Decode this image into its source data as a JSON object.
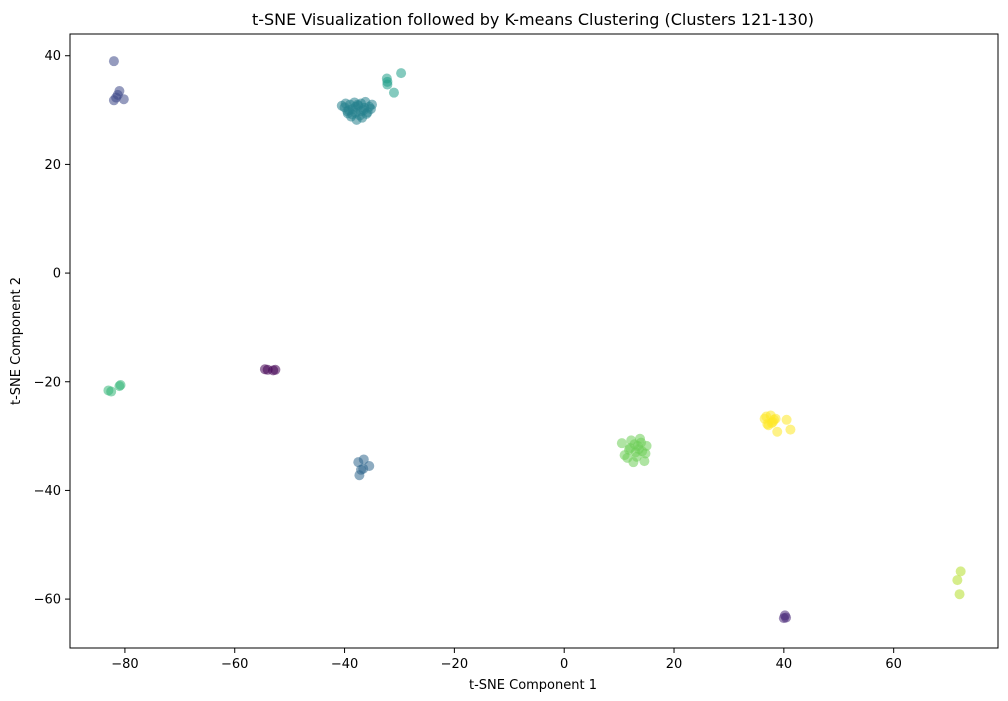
{
  "chart_data": {
    "type": "scatter",
    "title": "t-SNE Visualization followed by K-means Clustering (Clusters 121-130)",
    "xlabel": "t-SNE Component 1",
    "ylabel": "t-SNE Component 2",
    "xlim": [
      -90,
      79
    ],
    "ylim": [
      -69,
      44
    ],
    "xticks": [
      -80,
      -60,
      -40,
      -20,
      0,
      20,
      40,
      60
    ],
    "yticks": [
      -60,
      -40,
      -20,
      0,
      20,
      40
    ],
    "grid": false,
    "legend": "none",
    "series": [
      {
        "color": "#440154",
        "points": [
          [
            -54.5,
            -17.7
          ],
          [
            -54.0,
            -17.8
          ],
          [
            -53.0,
            -17.9
          ],
          [
            -52.6,
            -17.8
          ]
        ]
      },
      {
        "color": "#482878",
        "points": [
          [
            40.2,
            -63.0
          ],
          [
            40.0,
            -63.5
          ],
          [
            40.4,
            -63.4
          ]
        ]
      },
      {
        "color": "#3e4989",
        "points": [
          [
            -82.0,
            39.0
          ],
          [
            -81.0,
            33.5
          ],
          [
            -81.3,
            32.8
          ],
          [
            -82.0,
            31.8
          ],
          [
            -80.2,
            32.0
          ],
          [
            -81.6,
            32.3
          ]
        ]
      },
      {
        "color": "#31688e",
        "points": [
          [
            -37.5,
            -34.8
          ],
          [
            -36.5,
            -34.3
          ],
          [
            -35.5,
            -35.5
          ],
          [
            -37.0,
            -36.2
          ],
          [
            -37.3,
            -37.2
          ],
          [
            -36.6,
            -36.0
          ]
        ]
      },
      {
        "color": "#26828e",
        "points": [
          [
            -40.0,
            30.5
          ],
          [
            -39.5,
            29.8
          ],
          [
            -39.0,
            31.0
          ],
          [
            -38.5,
            30.2
          ],
          [
            -38.0,
            29.5
          ],
          [
            -37.5,
            30.8
          ],
          [
            -37.0,
            31.2
          ],
          [
            -36.5,
            30.0
          ],
          [
            -36.0,
            29.3
          ],
          [
            -35.5,
            30.6
          ],
          [
            -35.0,
            31.0
          ],
          [
            -38.8,
            28.8
          ],
          [
            -37.8,
            28.2
          ],
          [
            -37.2,
            29.0
          ],
          [
            -36.2,
            31.5
          ],
          [
            -39.2,
            30.0
          ],
          [
            -40.5,
            30.8
          ],
          [
            -38.2,
            31.4
          ],
          [
            -36.8,
            28.6
          ],
          [
            -35.8,
            29.6
          ],
          [
            -37.6,
            31.0
          ],
          [
            -39.8,
            31.2
          ],
          [
            -38.6,
            29.2
          ],
          [
            -36.4,
            30.4
          ],
          [
            -37.0,
            29.8
          ],
          [
            -38.0,
            30.6
          ],
          [
            -39.4,
            29.4
          ],
          [
            -35.2,
            30.2
          ]
        ]
      },
      {
        "color": "#1f9e89",
        "points": [
          [
            -32.3,
            35.8
          ],
          [
            -32.2,
            35.2
          ],
          [
            -32.2,
            34.7
          ],
          [
            -31.0,
            33.2
          ],
          [
            -29.7,
            36.8
          ]
        ]
      },
      {
        "color": "#35b779",
        "points": [
          [
            -83.0,
            -21.6
          ],
          [
            -82.5,
            -21.8
          ],
          [
            -81.0,
            -20.8
          ],
          [
            -80.8,
            -20.6
          ]
        ]
      },
      {
        "color": "#6ece58",
        "points": [
          [
            10.5,
            -31.3
          ],
          [
            11.0,
            -33.5
          ],
          [
            11.8,
            -32.5
          ],
          [
            12.2,
            -30.8
          ],
          [
            12.6,
            -34.8
          ],
          [
            13.0,
            -33.0
          ],
          [
            13.4,
            -31.8
          ],
          [
            13.8,
            -30.5
          ],
          [
            14.2,
            -32.8
          ],
          [
            14.6,
            -34.6
          ],
          [
            15.0,
            -31.8
          ],
          [
            12.0,
            -32.2
          ],
          [
            13.2,
            -33.8
          ],
          [
            14.0,
            -31.2
          ],
          [
            12.8,
            -31.5
          ],
          [
            11.5,
            -34.0
          ],
          [
            13.6,
            -32.4
          ],
          [
            14.8,
            -33.2
          ]
        ]
      },
      {
        "color": "#b5de2b",
        "points": [
          [
            71.6,
            -56.5
          ],
          [
            72.2,
            -54.9
          ],
          [
            72.0,
            -59.1
          ]
        ]
      },
      {
        "color": "#fde725",
        "points": [
          [
            36.5,
            -26.8
          ],
          [
            37.0,
            -27.8
          ],
          [
            37.6,
            -26.2
          ],
          [
            38.0,
            -27.4
          ],
          [
            38.5,
            -26.8
          ],
          [
            37.2,
            -28.0
          ],
          [
            38.8,
            -29.2
          ],
          [
            40.5,
            -27.0
          ],
          [
            41.2,
            -28.8
          ],
          [
            36.8,
            -26.4
          ],
          [
            38.2,
            -27.0
          ],
          [
            37.8,
            -27.6
          ]
        ]
      }
    ]
  }
}
